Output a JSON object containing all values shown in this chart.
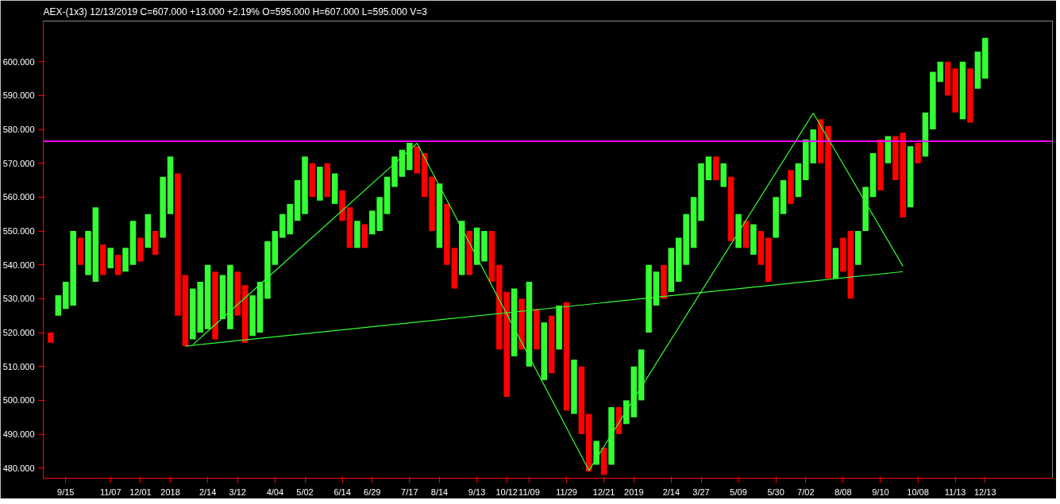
{
  "chart_data": {
    "type": "bar",
    "title": "AEX-(1x3)   12/13/2019   C=607.000   +13.000   +2.19%   O=595.000   H=607.000   L=595.000   V=3",
    "ylim": [
      477,
      612
    ],
    "categories": [
      null,
      null,
      "9/15",
      null,
      null,
      null,
      null,
      null,
      "11/07",
      null,
      null,
      null,
      "12/01",
      null,
      null,
      null,
      "2018",
      null,
      null,
      null,
      null,
      "2/14",
      null,
      null,
      null,
      "3/12",
      null,
      null,
      null,
      null,
      "4/04",
      null,
      null,
      null,
      "5/02",
      null,
      null,
      null,
      null,
      "6/14",
      null,
      null,
      null,
      "6/29",
      null,
      null,
      null,
      null,
      "7/17",
      null,
      null,
      null,
      "8/14",
      null,
      null,
      null,
      null,
      "9/13",
      null,
      null,
      null,
      "10/12",
      null,
      null,
      "11/09",
      null,
      null,
      null,
      null,
      "11/29",
      null,
      null,
      null,
      null,
      "12/21",
      null,
      null,
      null,
      "2019",
      null,
      null,
      null,
      null,
      "2/14",
      null,
      null,
      null,
      "3/27",
      null,
      null,
      null,
      null,
      "5/09",
      null,
      null,
      null,
      null,
      "5/30",
      null,
      null,
      null,
      "7/02",
      null,
      null,
      null,
      null,
      "8/08",
      null,
      null,
      null,
      null,
      "9/10",
      null,
      null,
      null,
      null,
      "10/08",
      null,
      null,
      null,
      null,
      "11/13",
      null,
      null,
      null,
      "12/13"
    ],
    "yticks": [
      {
        "value": 480,
        "label": "480.000"
      },
      {
        "value": 490,
        "label": "490.000"
      },
      {
        "value": 500,
        "label": "500.000"
      },
      {
        "value": 510,
        "label": "510.000"
      },
      {
        "value": 520,
        "label": "520.000"
      },
      {
        "value": 530,
        "label": "530.000"
      },
      {
        "value": 540,
        "label": "540.000"
      },
      {
        "value": 550,
        "label": "550.000"
      },
      {
        "value": 560,
        "label": "560.000"
      },
      {
        "value": 570,
        "label": "570.000"
      },
      {
        "value": 580,
        "label": "580.000"
      },
      {
        "value": 590,
        "label": "590.000"
      },
      {
        "value": 600,
        "label": "600.000"
      }
    ],
    "grid": false,
    "series": [
      {
        "base": [
          517,
          525,
          527,
          528,
          540,
          537,
          535,
          537,
          539,
          537,
          538,
          540,
          541,
          545,
          543,
          548,
          555,
          525,
          516,
          518,
          520,
          521,
          518,
          524,
          521,
          525,
          517,
          519,
          520,
          530,
          540,
          548,
          549,
          553,
          555,
          560,
          559,
          560,
          558,
          553,
          545,
          545,
          545,
          549,
          550,
          555,
          563,
          566,
          568,
          567,
          560,
          550,
          545,
          540,
          533,
          537,
          537,
          540,
          541,
          535,
          515,
          501,
          513,
          515,
          510,
          515,
          506,
          508,
          515,
          497,
          496,
          490,
          479,
          481,
          478,
          481,
          490,
          493,
          495,
          500,
          520,
          528,
          530,
          532,
          535,
          540,
          545,
          553,
          565,
          565,
          563,
          547,
          545,
          545,
          543,
          540,
          535,
          548,
          555,
          558,
          560,
          565,
          570,
          570,
          536,
          536,
          538,
          530,
          540,
          550,
          560,
          562,
          570,
          565,
          554,
          557,
          570,
          572,
          580,
          594,
          590,
          585,
          583,
          582,
          592,
          595
        ],
        "values": [
          3,
          6,
          8,
          22,
          8,
          13,
          22,
          9,
          6,
          6,
          7,
          13,
          7,
          10,
          7,
          18,
          17,
          42,
          21,
          15,
          15,
          19,
          20,
          13,
          19,
          13,
          17,
          12,
          15,
          17,
          10,
          7,
          9,
          12,
          17,
          10,
          10,
          10,
          9,
          9,
          12,
          8,
          7,
          7,
          10,
          11,
          9,
          8,
          8,
          8,
          13,
          16,
          19,
          18,
          12,
          16,
          13,
          11,
          9,
          15,
          25,
          31,
          20,
          15,
          25,
          12,
          17,
          17,
          13,
          32,
          16,
          20,
          17,
          7,
          8,
          17,
          8,
          7,
          15,
          15,
          20,
          10,
          10,
          13,
          13,
          15,
          15,
          17,
          7,
          7,
          7,
          19,
          10,
          8,
          9,
          10,
          13,
          12,
          10,
          10,
          10,
          12,
          10,
          13,
          45,
          9,
          10,
          20,
          10,
          13,
          13,
          15,
          8,
          13,
          25,
          18,
          6,
          13,
          17,
          6,
          10,
          13,
          17,
          16,
          11,
          12
        ],
        "colors": [
          "#ff0000",
          "#33ff33",
          "#33ff33",
          "#33ff33",
          "#ff0000",
          "#33ff33",
          "#33ff33",
          "#ff0000",
          "#33ff33",
          "#ff0000",
          "#33ff33",
          "#33ff33",
          "#ff0000",
          "#33ff33",
          "#ff0000",
          "#33ff33",
          "#33ff33",
          "#ff0000",
          "#ff0000",
          "#33ff33",
          "#33ff33",
          "#33ff33",
          "#ff0000",
          "#33ff33",
          "#33ff33",
          "#ff0000",
          "#ff0000",
          "#33ff33",
          "#33ff33",
          "#33ff33",
          "#33ff33",
          "#33ff33",
          "#33ff33",
          "#33ff33",
          "#33ff33",
          "#ff0000",
          "#33ff33",
          "#ff0000",
          "#33ff33",
          "#ff0000",
          "#ff0000",
          "#33ff33",
          "#ff0000",
          "#33ff33",
          "#33ff33",
          "#33ff33",
          "#33ff33",
          "#33ff33",
          "#33ff33",
          "#ff0000",
          "#ff0000",
          "#ff0000",
          "#33ff33",
          "#ff0000",
          "#ff0000",
          "#33ff33",
          "#ff0000",
          "#33ff33",
          "#33ff33",
          "#ff0000",
          "#ff0000",
          "#ff0000",
          "#33ff33",
          "#ff0000",
          "#33ff33",
          "#ff0000",
          "#33ff33",
          "#ff0000",
          "#33ff33",
          "#ff0000",
          "#33ff33",
          "#ff0000",
          "#ff0000",
          "#33ff33",
          "#ff0000",
          "#33ff33",
          "#ff0000",
          "#33ff33",
          "#33ff33",
          "#33ff33",
          "#33ff33",
          "#33ff33",
          "#ff0000",
          "#33ff33",
          "#33ff33",
          "#33ff33",
          "#33ff33",
          "#33ff33",
          "#33ff33",
          "#ff0000",
          "#33ff33",
          "#ff0000",
          "#33ff33",
          "#ff0000",
          "#33ff33",
          "#ff0000",
          "#ff0000",
          "#33ff33",
          "#33ff33",
          "#ff0000",
          "#33ff33",
          "#33ff33",
          "#33ff33",
          "#ff0000",
          "#ff0000",
          "#33ff33",
          "#ff0000",
          "#ff0000",
          "#33ff33",
          "#33ff33",
          "#33ff33",
          "#ff0000",
          "#33ff33",
          "#ff0000",
          "#ff0000",
          "#33ff33",
          "#ff0000",
          "#33ff33",
          "#33ff33",
          "#33ff33",
          "#ff0000",
          "#ff0000",
          "#33ff33",
          "#ff0000",
          "#33ff33",
          "#33ff33"
        ]
      },
      {
        "type": "line",
        "color": "#33ff33",
        "values": [
          null,
          null,
          null,
          null,
          null,
          null,
          null,
          null,
          null,
          null,
          null,
          null,
          null,
          null,
          null,
          null,
          null,
          null,
          null,
          516.4,
          null,
          null,
          null,
          null,
          null,
          null,
          null,
          null,
          null,
          null,
          null,
          null,
          null,
          null,
          null,
          null,
          null,
          null,
          null,
          null,
          null,
          null,
          null,
          null,
          null,
          null,
          null,
          null,
          null,
          575.9,
          null,
          null,
          null,
          null,
          null,
          null,
          null,
          null,
          null,
          null,
          null,
          null,
          null,
          null,
          null,
          null,
          null,
          null,
          null,
          null,
          null,
          null,
          479.3,
          null,
          null,
          null,
          null,
          null,
          null,
          null,
          null,
          null,
          null,
          null,
          null,
          null,
          null,
          null,
          null,
          null,
          null,
          null,
          null,
          null,
          null,
          null,
          null,
          null,
          null,
          null,
          null,
          null,
          584.8,
          null,
          null,
          null,
          null,
          null,
          null,
          null,
          null,
          null,
          null,
          null,
          539.6,
          null,
          null,
          null,
          null,
          null,
          null,
          null,
          null,
          null,
          null,
          null
        ]
      },
      {
        "type": "line",
        "color": "#33ff33",
        "values": [
          null,
          null,
          null,
          null,
          null,
          null,
          null,
          null,
          null,
          null,
          null,
          null,
          null,
          null,
          null,
          null,
          null,
          null,
          516,
          null,
          null,
          null,
          null,
          null,
          null,
          null,
          null,
          null,
          null,
          null,
          null,
          null,
          null,
          null,
          null,
          null,
          null,
          null,
          null,
          null,
          null,
          null,
          null,
          null,
          null,
          null,
          null,
          null,
          null,
          null,
          null,
          null,
          null,
          null,
          null,
          null,
          null,
          null,
          null,
          null,
          null,
          null,
          null,
          null,
          null,
          null,
          null,
          null,
          null,
          null,
          null,
          null,
          null,
          null,
          null,
          null,
          null,
          null,
          null,
          null,
          null,
          null,
          null,
          null,
          null,
          null,
          null,
          null,
          null,
          null,
          null,
          null,
          null,
          null,
          null,
          null,
          null,
          null,
          null,
          null,
          null,
          null,
          null,
          null,
          null,
          null,
          null,
          null,
          null,
          null,
          null,
          null,
          null,
          null,
          538,
          null,
          null,
          null,
          null,
          null,
          null,
          null,
          null,
          null,
          null,
          null
        ]
      }
    ],
    "ref_lines": [
      {
        "axis": "y",
        "value": 576.5,
        "color": "#ff00ff"
      }
    ]
  }
}
